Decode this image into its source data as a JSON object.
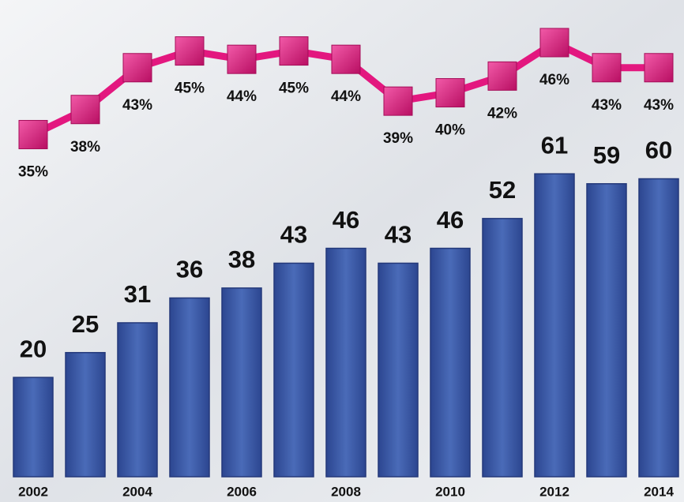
{
  "chart_data": {
    "type": "bar",
    "categories": [
      "2002",
      null,
      "2004",
      null,
      "2006",
      null,
      "2008",
      null,
      "2010",
      null,
      "2012",
      null,
      "2014"
    ],
    "ylim": [
      0,
      96
    ],
    "y2lim": [
      30,
      50
    ],
    "series": [
      {
        "type": "bar",
        "color": "#3f5ea8",
        "values": [
          20,
          25,
          31,
          36,
          38,
          43,
          46,
          43,
          46,
          52,
          61,
          59,
          60
        ]
      },
      {
        "type": "line",
        "axis": "y2",
        "color": "#e3177f",
        "values": [
          35,
          38,
          43,
          45,
          44,
          45,
          44,
          39,
          40,
          42,
          46,
          43,
          43
        ],
        "value_labels": [
          "35%",
          "38%",
          "43%",
          "45%",
          "44%",
          "45%",
          "44%",
          "39%",
          "40%",
          "42%",
          "46%",
          "43%",
          "43%"
        ]
      }
    ]
  }
}
